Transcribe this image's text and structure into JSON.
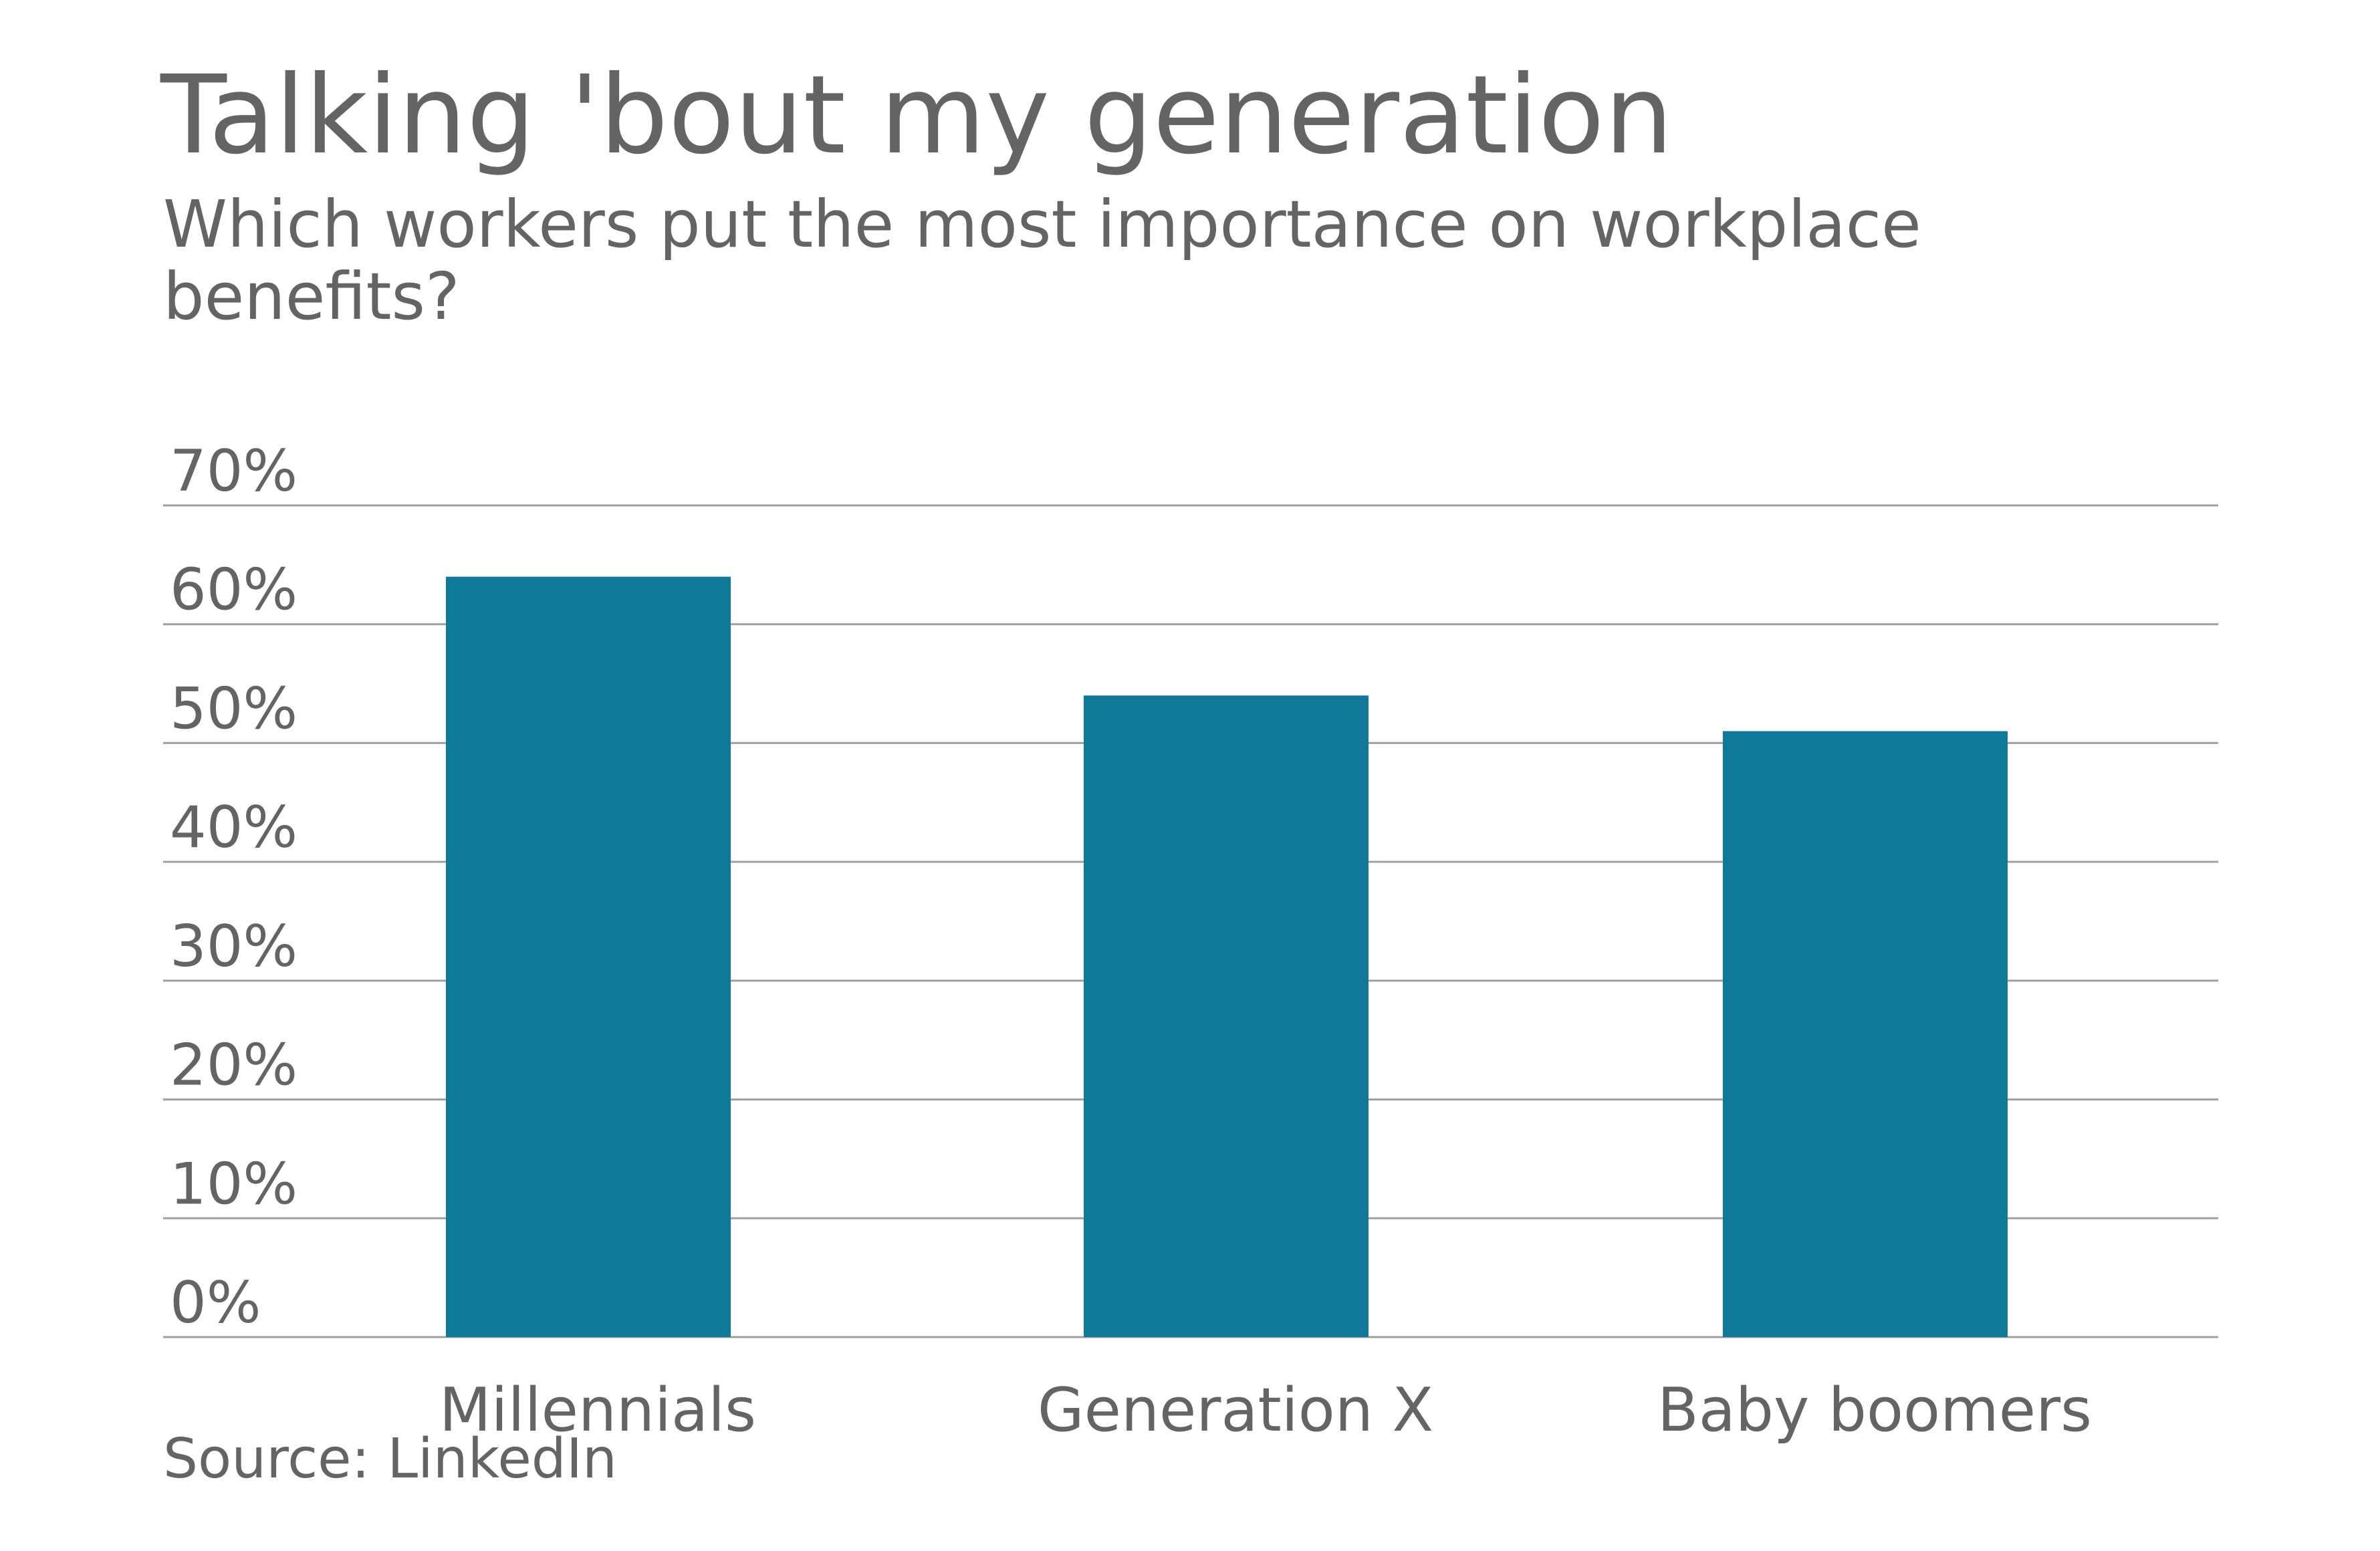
{
  "chart_data": {
    "type": "bar",
    "title": "Talking 'bout my generation",
    "subtitle": "Which workers put the most importance on workplace benefits?",
    "categories": [
      "Millennials",
      "Generation X",
      "Baby boomers"
    ],
    "values": [
      64,
      54,
      51
    ],
    "ylim": [
      0,
      70
    ],
    "yticks": [
      0,
      10,
      20,
      30,
      40,
      50,
      60,
      70
    ],
    "ytick_labels": [
      "0%",
      "10%",
      "20%",
      "30%",
      "40%",
      "50%",
      "60%",
      "70%"
    ],
    "xlabel": "",
    "ylabel": "",
    "grid": true,
    "legend": "none",
    "source": "Source: LinkedIn",
    "colors": {
      "bar": "#0e7a98",
      "text": "#646464",
      "grid": "#a0a0a0"
    }
  }
}
